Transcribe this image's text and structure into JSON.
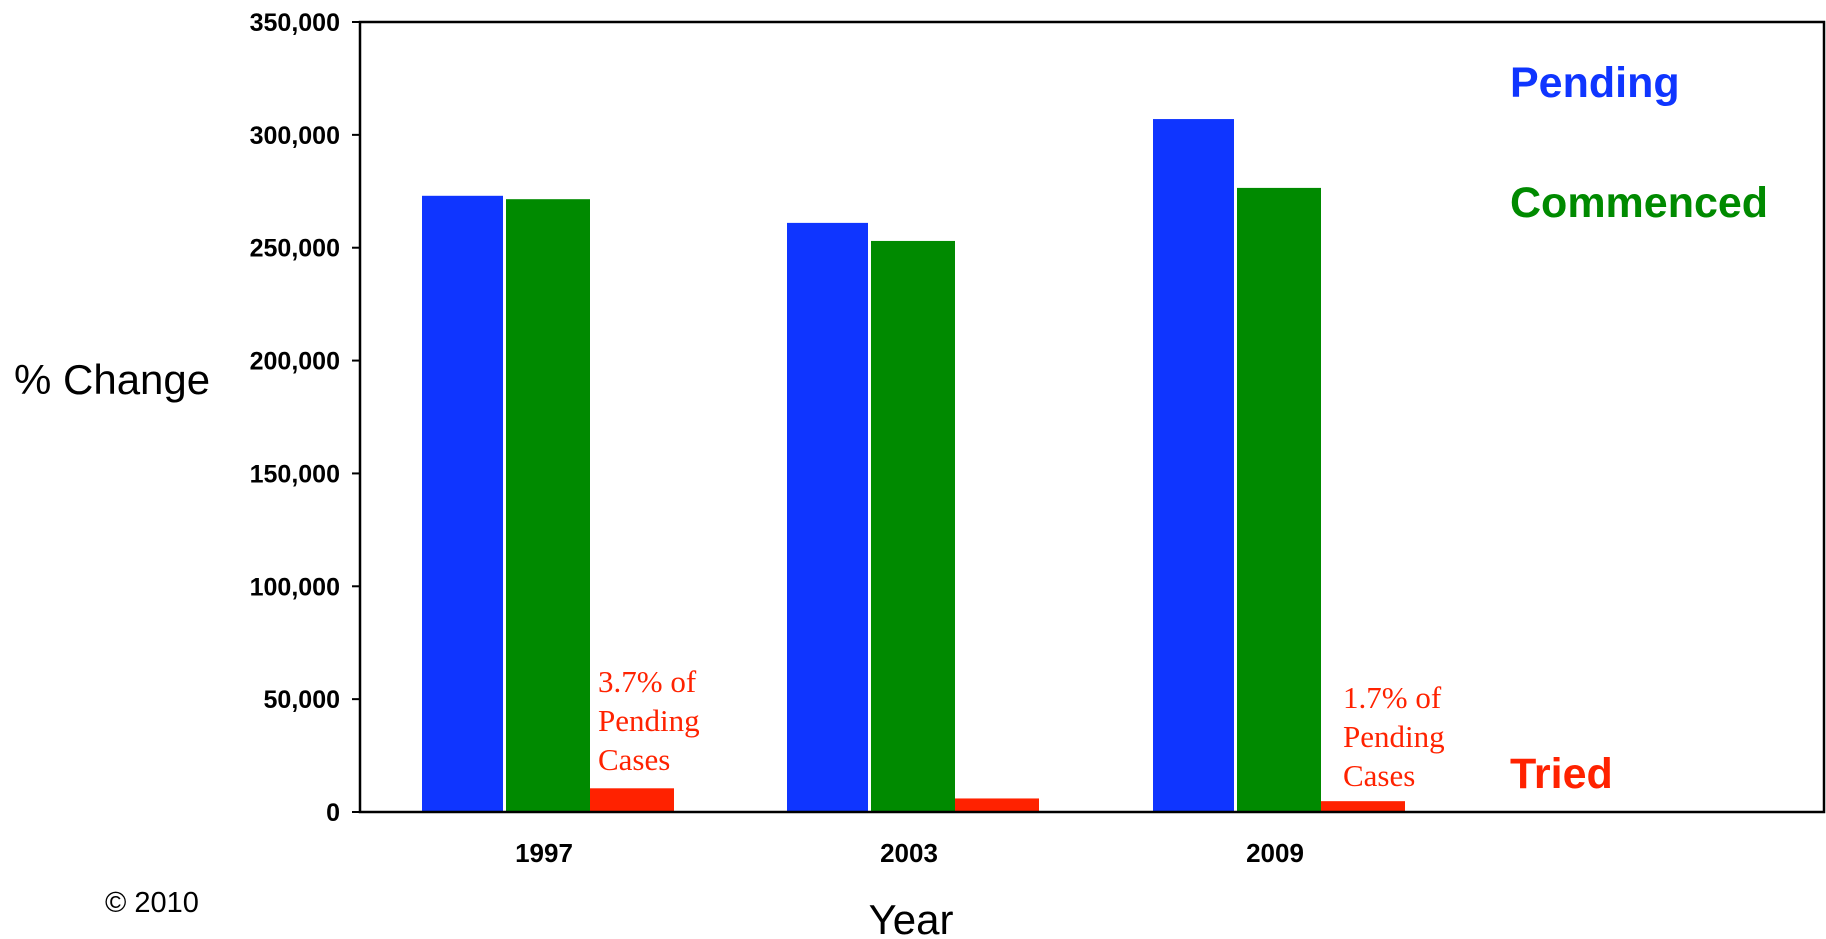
{
  "chart_data": {
    "type": "bar",
    "title": "",
    "xlabel": "Year",
    "ylabel": "% Change",
    "ylim": [
      0,
      350000
    ],
    "yticks": [
      0,
      50000,
      100000,
      150000,
      200000,
      250000,
      300000,
      350000
    ],
    "ytick_labels": [
      "0",
      "50,000",
      "100,000",
      "150,000",
      "200,000",
      "250,000",
      "300,000",
      "350,000"
    ],
    "categories": [
      "1997",
      "2003",
      "2009"
    ],
    "series": [
      {
        "name": "Pending",
        "color": "#0f35ff",
        "values": [
          273000,
          261000,
          307000
        ]
      },
      {
        "name": "Commenced",
        "color": "#008a00",
        "values": [
          271500,
          253000,
          276500
        ]
      },
      {
        "name": "Tried",
        "color": "#ff2200",
        "values": [
          10500,
          6000,
          4800
        ]
      }
    ],
    "legend_placement": "right",
    "annotations": [
      {
        "category": "1997",
        "lines": [
          "3.7% of",
          "Pending",
          "Cases"
        ]
      },
      {
        "category": "2009",
        "lines": [
          "1.7% of",
          "Pending",
          "Cases"
        ]
      }
    ],
    "grid": false
  },
  "footer": {
    "copyright": "© 2010"
  }
}
